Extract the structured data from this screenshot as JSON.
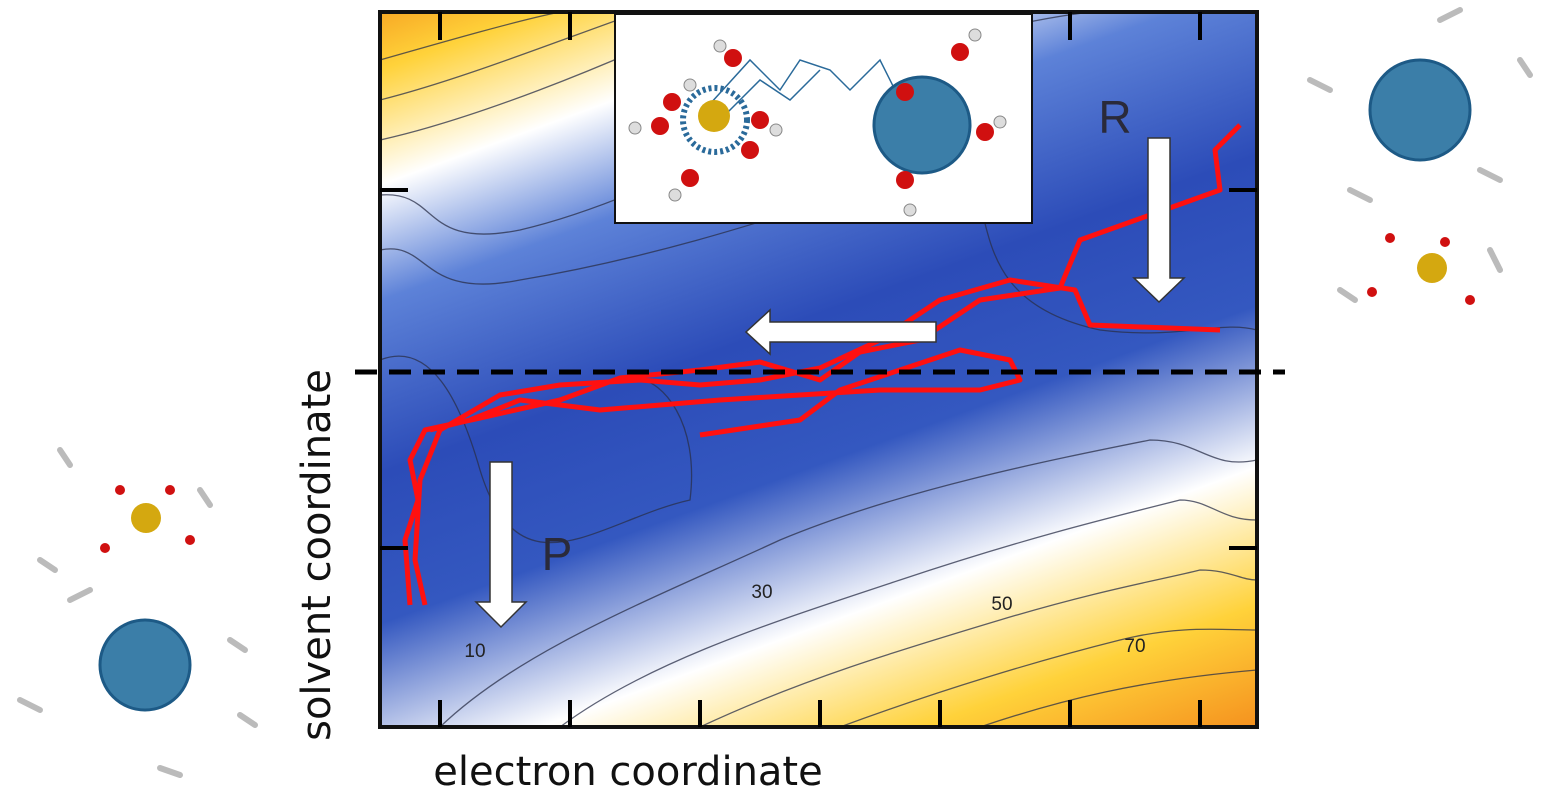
{
  "axes": {
    "x_label": "electron coordinate",
    "y_label": "solvent coordinate"
  },
  "regions": [
    "R",
    "P"
  ],
  "contour_labels": [
    10,
    30,
    50,
    70
  ]
}
